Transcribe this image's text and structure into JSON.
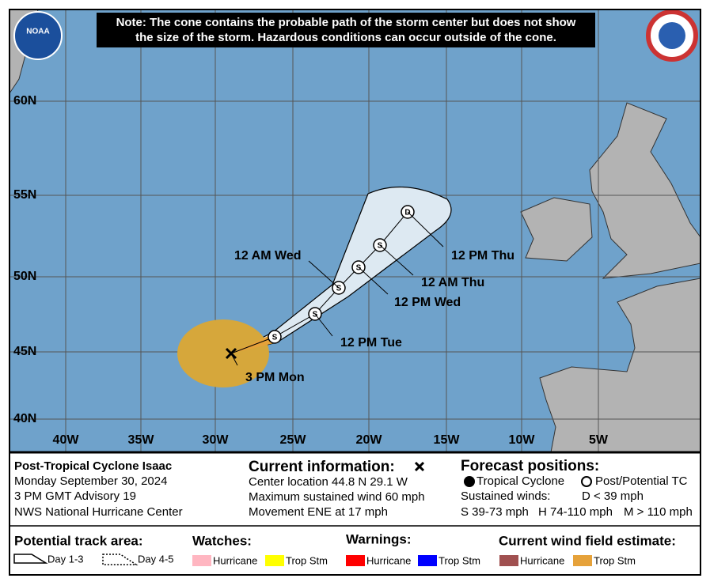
{
  "note": [
    "Note: The cone contains the probable path of the storm center but does not show",
    "the size of the storm. Hazardous conditions can occur outside of the cone."
  ],
  "logo": "NOAA",
  "map": {
    "lat_labels": [
      "60N",
      "55N",
      "50N",
      "45N",
      "40N"
    ],
    "lon_labels": [
      "40W",
      "35W",
      "30W",
      "25W",
      "20W",
      "15W",
      "10W",
      "5W"
    ],
    "points": [
      "S",
      "S",
      "S",
      "S",
      "S",
      "D"
    ],
    "labels": [
      "3 PM Mon",
      "12 PM Tue",
      "12 AM Wed",
      "12 PM Wed",
      "12 AM Thu",
      "12 PM Thu"
    ]
  },
  "storm": {
    "name": "Post-Tropical Cyclone Isaac",
    "date": "Monday September 30, 2024",
    "advisory": "3 PM GMT Advisory 19",
    "center": "NWS National Hurricane Center"
  },
  "current": {
    "heading": "Current information:",
    "lines": [
      "Center location 44.8 N 29.1 W",
      "Maximum sustained wind 60 mph",
      "Movement ENE at 17 mph"
    ]
  },
  "forecast": {
    "heading": "Forecast positions:",
    "tropical": "Tropical Cyclone",
    "post": "Post/Potential TC",
    "winds": "Sustained winds:",
    "d": "D < 39 mph",
    "s": "S 39-73 mph",
    "h": "H 74-110 mph",
    "m": "M > 110 mph"
  },
  "legend": {
    "track": "Potential track area:",
    "day13": "Day 1-3",
    "day45": "Day 4-5",
    "watches": "Watches:",
    "warnings": "Warnings:",
    "wind": "Current wind field estimate:",
    "items": [
      "Hurricane",
      "Trop Stm",
      "Hurricane",
      "Trop Stm",
      "Hurricane",
      "Trop Stm"
    ]
  }
}
